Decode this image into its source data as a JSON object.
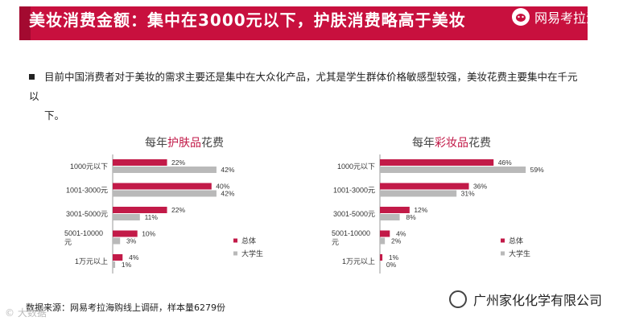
{
  "banner": {
    "title": "美妆消费金额：集中在3000元以下，护肤消费略高于美妆",
    "brand": "网易考拉海购"
  },
  "intro": {
    "line1": "目前中国消费者对于美妆的需求主要还是集中在大众化产品，尤其是学生群体价格敏感型较强，美妆花费主要集中在千元以",
    "line2": "下。"
  },
  "colors": {
    "banner": "#c8103e",
    "series_total": "#c21a48",
    "series_student": "#b9b9b9"
  },
  "chart_data": [
    {
      "type": "bar",
      "orientation": "horizontal",
      "title": {
        "prefix": "每年",
        "highlight": "护肤品",
        "suffix": "花费"
      },
      "categories": [
        [
          "1000元以下"
        ],
        [
          "1001-3000元"
        ],
        [
          "3001-5000元"
        ],
        [
          "5001-10000",
          "元"
        ],
        [
          "1万元以上"
        ]
      ],
      "series": [
        {
          "name": "总体",
          "color": "#c21a48",
          "values": [
            22,
            40,
            22,
            10,
            4
          ]
        },
        {
          "name": "大学生",
          "color": "#b9b9b9",
          "values": [
            42,
            42,
            11,
            3,
            1
          ]
        }
      ],
      "value_suffix": "%",
      "legend": "bottom-right",
      "grid": false
    },
    {
      "type": "bar",
      "orientation": "horizontal",
      "title": {
        "prefix": "每年",
        "highlight": "彩妆品",
        "suffix": "花费"
      },
      "categories": [
        [
          "1000元以下"
        ],
        [
          "1001-3000元"
        ],
        [
          "3001-5000元"
        ],
        [
          "5001-10000",
          "元"
        ],
        [
          "1万元以上"
        ]
      ],
      "series": [
        {
          "name": "总体",
          "color": "#c21a48",
          "values": [
            46,
            36,
            12,
            4,
            1
          ]
        },
        {
          "name": "大学生",
          "color": "#b9b9b9",
          "values": [
            59,
            31,
            8,
            2,
            0
          ]
        }
      ],
      "value_suffix": "%",
      "legend": "bottom-right",
      "grid": false
    }
  ],
  "footer": {
    "source": "数据来源：网易考拉海购线上调研，样本量6279份",
    "company": "广州家化化学有限公司",
    "watermark": "© 大数据"
  }
}
